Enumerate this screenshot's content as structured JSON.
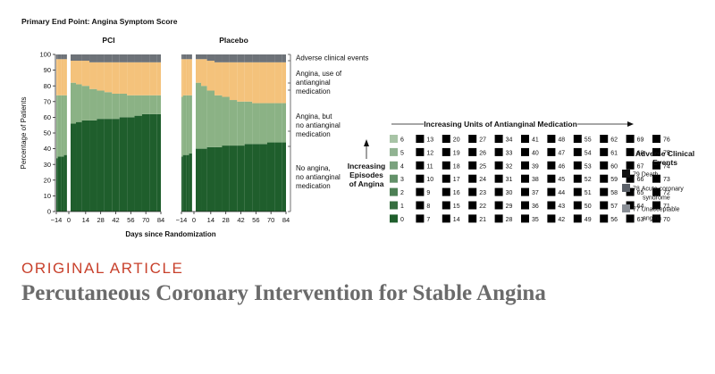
{
  "article": {
    "kicker": "ORIGINAL ARTICLE",
    "title": "Percutaneous Coronary Intervention for Stable Angina"
  },
  "chart_data": {
    "type": "area",
    "title": "Primary End Point: Angina Symptom Score",
    "xlabel": "Days since Randomization",
    "ylabel": "Percentage of Patients",
    "ylim": [
      0,
      100
    ],
    "yticks": [
      0,
      10,
      20,
      30,
      40,
      50,
      60,
      70,
      80,
      90,
      100
    ],
    "xticks": [
      "−14",
      "0",
      "14",
      "28",
      "42",
      "56",
      "70",
      "84"
    ],
    "x_days": [
      -14,
      -10,
      -6,
      -2,
      0,
      3,
      7,
      14,
      21,
      28,
      35,
      42,
      49,
      56,
      63,
      70,
      77,
      84
    ],
    "panels": [
      {
        "name": "PCI",
        "series": [
          {
            "name": "No angina, no antianginal medication",
            "values": [
              34,
              35,
              35,
              36,
              36,
              56,
              57,
              58,
              58,
              59,
              59,
              59,
              60,
              60,
              61,
              62,
              62,
              62
            ]
          },
          {
            "name": "Angina, but no antianginal medication",
            "values": [
              40,
              39,
              39,
              38,
              38,
              26,
              24,
              22,
              20,
              18,
              17,
              16,
              15,
              14,
              13,
              12,
              12,
              12
            ]
          },
          {
            "name": "Angina, use of antianginal medication",
            "values": [
              23,
              23,
              23,
              23,
              23,
              14,
              15,
              16,
              17,
              18,
              19,
              20,
              20,
              21,
              21,
              21,
              21,
              21
            ]
          },
          {
            "name": "Adverse clinical events",
            "values": [
              3,
              3,
              3,
              3,
              3,
              4,
              4,
              4,
              5,
              5,
              5,
              5,
              5,
              5,
              5,
              5,
              5,
              5
            ]
          }
        ]
      },
      {
        "name": "Placebo",
        "series": [
          {
            "name": "No angina, no antianginal medication",
            "values": [
              35,
              36,
              36,
              37,
              37,
              40,
              40,
              41,
              41,
              42,
              42,
              42,
              43,
              43,
              43,
              44,
              44,
              44
            ]
          },
          {
            "name": "Angina, but no antianginal medication",
            "values": [
              38,
              38,
              38,
              37,
              37,
              42,
              40,
              36,
              33,
              31,
              29,
              28,
              27,
              26,
              26,
              25,
              25,
              25
            ]
          },
          {
            "name": "Angina, use of antianginal medication",
            "values": [
              24,
              23,
              23,
              23,
              23,
              15,
              17,
              19,
              21,
              22,
              24,
              25,
              25,
              26,
              26,
              26,
              26,
              26
            ]
          },
          {
            "name": "Adverse clinical events",
            "values": [
              3,
              3,
              3,
              3,
              3,
              3,
              3,
              4,
              5,
              5,
              5,
              5,
              5,
              5,
              5,
              5,
              5,
              5
            ]
          }
        ]
      }
    ],
    "annotations": [
      {
        "label": "Adverse clinical events",
        "lines": [
          "Adverse clinical events"
        ]
      },
      {
        "label": "Angina, use of antianginal medication",
        "lines": [
          "Angina, use of",
          "antianginal",
          "medication"
        ]
      },
      {
        "label": "Angina, but no antianginal medication",
        "lines": [
          "Angina, but",
          "no antianginal",
          "medication"
        ]
      },
      {
        "label": "No angina, no antianginal medication",
        "lines": [
          "No angina,",
          "no antianginal",
          "medication"
        ]
      }
    ],
    "legend": {
      "x_title": "Increasing Units of Antianginal Medication",
      "y_title": [
        "Increasing",
        "Episodes",
        "of Angina"
      ],
      "grid": [
        [
          "6",
          "13",
          "20",
          "27",
          "34",
          "41",
          "48",
          "55",
          "62",
          "69",
          "76"
        ],
        [
          "5",
          "12",
          "19",
          "26",
          "33",
          "40",
          "47",
          "54",
          "61",
          "68",
          "75"
        ],
        [
          "4",
          "11",
          "18",
          "25",
          "32",
          "39",
          "46",
          "53",
          "60",
          "67",
          "74"
        ],
        [
          "3",
          "10",
          "17",
          "24",
          "31",
          "38",
          "45",
          "52",
          "59",
          "66",
          "73"
        ],
        [
          "2",
          "9",
          "16",
          "23",
          "30",
          "37",
          "44",
          "51",
          "58",
          "65",
          "72"
        ],
        [
          "1",
          "8",
          "15",
          "22",
          "29",
          "36",
          "43",
          "50",
          "57",
          "64",
          "71"
        ],
        [
          "0",
          "7",
          "14",
          "21",
          "28",
          "35",
          "42",
          "49",
          "56",
          "63",
          "70"
        ]
      ],
      "adverse_title": [
        "Adverse Clinical",
        "Events"
      ],
      "adverse": [
        {
          "code": "79",
          "lines": [
            "Death"
          ],
          "color": "#111111"
        },
        {
          "code": "78",
          "lines": [
            "Acute coronary",
            "syndrome"
          ],
          "color": "#5b6068"
        },
        {
          "code": "77",
          "lines": [
            "Unacceptable",
            "angina"
          ],
          "color": "#8a8f96"
        }
      ]
    },
    "colors": {
      "green_dark": "#1f5e2c",
      "green_light": "#b7cfb4",
      "cream": "#f6ead3",
      "orange_light": "#f6c98a",
      "red_dark": "#7c1b12",
      "adverse_gray": "#6d7278"
    }
  }
}
